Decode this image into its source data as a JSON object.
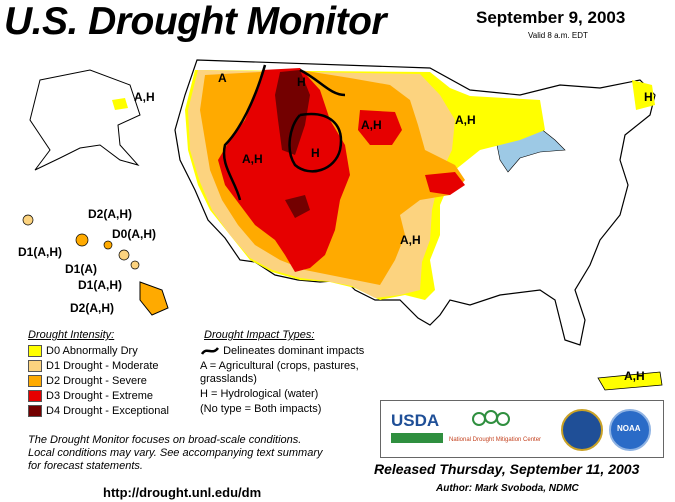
{
  "header": {
    "title": "U.S. Drought Monitor",
    "date": "September 9, 2003",
    "valid": "Valid 8 a.m. EDT"
  },
  "map_labels": {
    "alaska": "A,H",
    "hawaii_top": "D2(A,H)",
    "hawaii_d0": "D0(A,H)",
    "hawaii_left": "D1(A,H)",
    "hawaii_d1a": "D1(A)",
    "hawaii_d1ah": "D1(A,H)",
    "hawaii_big": "D2(A,H)",
    "nw_a": "A",
    "mt_h": "H",
    "great_basin": "A,H",
    "wy_h": "H",
    "dakotas": "A,H",
    "upper_midwest": "A,H",
    "maine": "H",
    "southern_plains": "A,H",
    "puerto_rico": "A,H"
  },
  "legend": {
    "title": "Drought Intensity:",
    "items": [
      {
        "label": "D0 Abnormally Dry",
        "color": "#ffff00"
      },
      {
        "label": "D1 Drought - Moderate",
        "color": "#fcd37f"
      },
      {
        "label": "D2 Drought - Severe",
        "color": "#ffaa00"
      },
      {
        "label": "D3 Drought - Extreme",
        "color": "#e60000"
      },
      {
        "label": "D4 Drought - Exceptional",
        "color": "#730000"
      }
    ]
  },
  "impacts": {
    "title": "Drought Impact Types:",
    "boundary": "Delineates dominant impacts",
    "line1": "A = Agricultural (crops, pastures,",
    "line2": "grasslands)",
    "line3": "H = Hydrological (water)",
    "line4": "(No type = Both impacts)"
  },
  "note": {
    "line1": "The Drought Monitor focuses on broad-scale conditions.",
    "line2": "Local conditions may vary.  See accompanying text summary",
    "line3": "for forecast statements."
  },
  "url": "http://drought.unl.edu/dm",
  "logos": {
    "usda": "USDA",
    "ndmc": "National Drought Mitigation Center",
    "noaa": "NOAA"
  },
  "footer": {
    "released": "Released Thursday, September 11, 2003",
    "author": "Author:  Mark Svoboda, NDMC"
  }
}
